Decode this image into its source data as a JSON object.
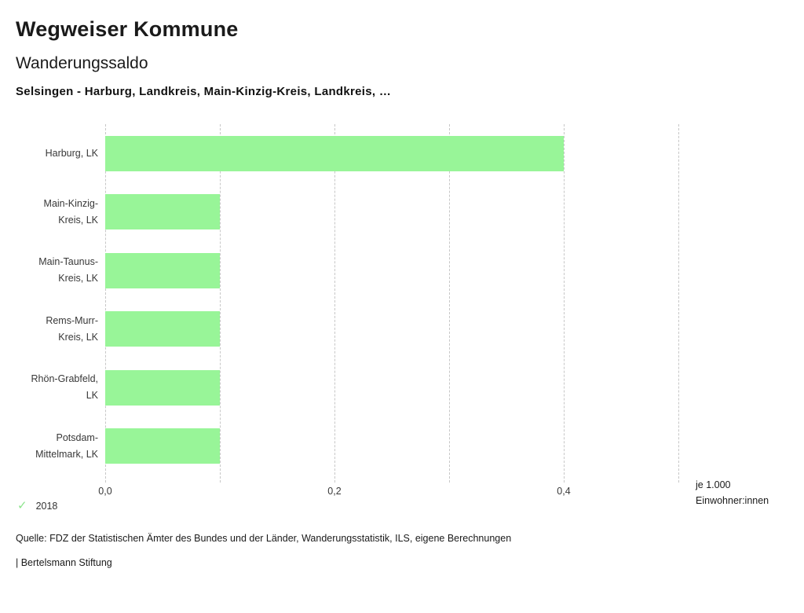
{
  "header": {
    "title": "Wegweiser Kommune",
    "subtitle": "Wanderungssaldo",
    "selection": "Selsingen - Harburg, Landkreis, Main-Kinzig-Kreis, Landkreis, …"
  },
  "chart_data": {
    "type": "bar",
    "orientation": "horizontal",
    "title": "Wanderungssaldo",
    "categories": [
      "Harburg, LK",
      "Main-Kinzig-Kreis, LK",
      "Main-Taunus-Kreis, LK",
      "Rems-Murr-Kreis, LK",
      "Rhön-Grabfeld, LK",
      "Potsdam-Mittelmark, LK"
    ],
    "category_label_lines": [
      [
        "Harburg, LK"
      ],
      [
        "Main-Kinzig-",
        "Kreis, LK"
      ],
      [
        "Main-Taunus-",
        "Kreis, LK"
      ],
      [
        "Rems-Murr-",
        "Kreis, LK"
      ],
      [
        "Rhön-Grabfeld,",
        "LK"
      ],
      [
        "Potsdam-",
        "Mittelmark, LK"
      ]
    ],
    "series": [
      {
        "name": "2018",
        "values": [
          0.4,
          0.1,
          0.1,
          0.1,
          0.1,
          0.1
        ],
        "color": "#98f598"
      }
    ],
    "xlim": [
      0,
      0.5
    ],
    "x_ticks": [
      {
        "value": 0.0,
        "label": "0,0"
      },
      {
        "value": 0.2,
        "label": "0,2"
      },
      {
        "value": 0.4,
        "label": "0,4"
      }
    ],
    "gridline_values": [
      0,
      0.1,
      0.2,
      0.3,
      0.4,
      0.5
    ],
    "grid_style": "dashed-vertical",
    "xlabel_lines": [
      "je 1.000",
      "Einwohner:innen"
    ],
    "legend": {
      "position": "bottom-left",
      "items": [
        {
          "label": "2018",
          "marker": "check",
          "glyph": "✓",
          "color": "#8ce48c"
        }
      ]
    }
  },
  "footer": {
    "source": "Quelle: FDZ der Statistischen Ämter des Bundes und der Länder, Wanderungsstatistik, ILS, eigene Berechnungen",
    "attribution": "| Bertelsmann Stiftung"
  },
  "colors": {
    "bar_fill": "#98f598",
    "gridline": "#c7c7c7",
    "text_primary": "#1a1a1a",
    "text_secondary": "#383838",
    "legend_check": "#8ce48c"
  }
}
